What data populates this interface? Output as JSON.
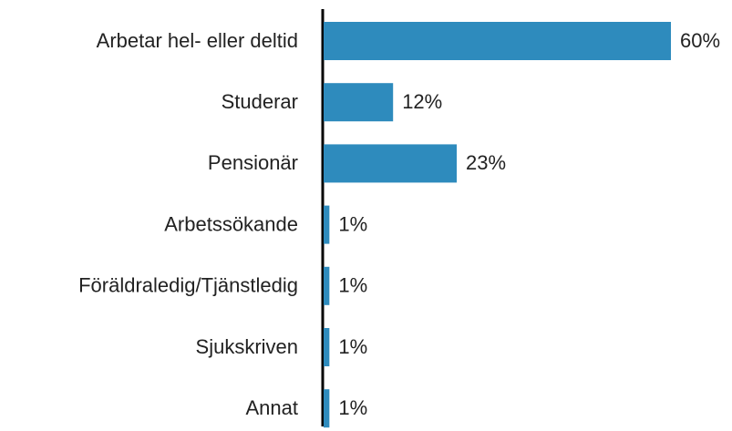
{
  "chart_data": {
    "type": "bar",
    "orientation": "horizontal",
    "categories": [
      "Arbetar hel- eller deltid",
      "Studerar",
      "Pensionär",
      "Arbetssökande",
      "Föräldraledig/Tjänstledig",
      "Sjukskriven",
      "Annat"
    ],
    "values": [
      60,
      12,
      23,
      1,
      1,
      1,
      1
    ],
    "value_labels": [
      "60%",
      "12%",
      "23%",
      "1%",
      "1%",
      "1%",
      "1%"
    ],
    "color": "#2e8bbd"
  }
}
